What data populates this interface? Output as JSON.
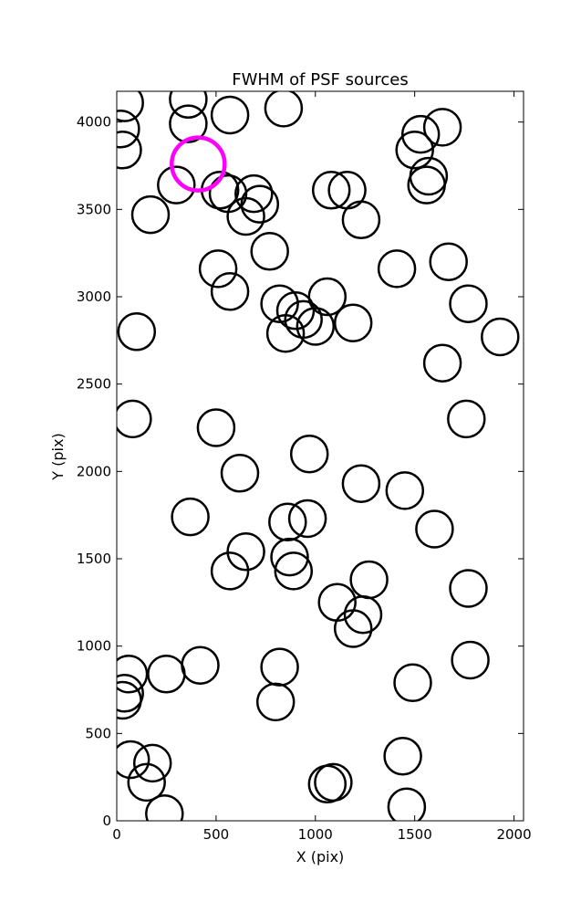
{
  "chart_data": {
    "type": "scatter",
    "title": "FWHM of PSF sources",
    "xlabel": "X (pix)",
    "ylabel": "Y (pix)",
    "xlim": [
      0,
      2048
    ],
    "ylim": [
      0,
      4176
    ],
    "xticks": [
      0,
      500,
      1000,
      1500,
      2000
    ],
    "yticks": [
      0,
      500,
      1000,
      1500,
      2000,
      2500,
      3000,
      3500,
      4000
    ],
    "grid": false,
    "marker": "open-circle",
    "source_color": "#000000",
    "highlight_color": "#ff00ff",
    "sources": [
      [
        40,
        4110
      ],
      [
        20,
        3960
      ],
      [
        30,
        3840
      ],
      [
        360,
        4130
      ],
      [
        360,
        3990
      ],
      [
        570,
        4040
      ],
      [
        840,
        4080
      ],
      [
        1530,
        3930
      ],
      [
        1640,
        3970
      ],
      [
        1500,
        3840
      ],
      [
        1570,
        3690
      ],
      [
        1560,
        3640
      ],
      [
        300,
        3640
      ],
      [
        170,
        3470
      ],
      [
        520,
        3610
      ],
      [
        560,
        3590
      ],
      [
        690,
        3590
      ],
      [
        720,
        3530
      ],
      [
        650,
        3460
      ],
      [
        1080,
        3610
      ],
      [
        1160,
        3610
      ],
      [
        1230,
        3440
      ],
      [
        770,
        3260
      ],
      [
        510,
        3160
      ],
      [
        570,
        3030
      ],
      [
        1410,
        3160
      ],
      [
        1670,
        3200
      ],
      [
        1770,
        2960
      ],
      [
        820,
        2960
      ],
      [
        900,
        2920
      ],
      [
        940,
        2870
      ],
      [
        1000,
        2830
      ],
      [
        850,
        2790
      ],
      [
        1060,
        3000
      ],
      [
        1190,
        2850
      ],
      [
        100,
        2800
      ],
      [
        1640,
        2620
      ],
      [
        1930,
        2770
      ],
      [
        80,
        2300
      ],
      [
        1760,
        2300
      ],
      [
        500,
        2250
      ],
      [
        970,
        2100
      ],
      [
        620,
        1990
      ],
      [
        1230,
        1930
      ],
      [
        1450,
        1890
      ],
      [
        370,
        1740
      ],
      [
        860,
        1710
      ],
      [
        960,
        1730
      ],
      [
        1600,
        1670
      ],
      [
        650,
        1540
      ],
      [
        570,
        1430
      ],
      [
        870,
        1510
      ],
      [
        890,
        1430
      ],
      [
        1270,
        1380
      ],
      [
        1770,
        1330
      ],
      [
        1110,
        1250
      ],
      [
        1240,
        1180
      ],
      [
        1190,
        1100
      ],
      [
        1780,
        920
      ],
      [
        1490,
        790
      ],
      [
        60,
        840
      ],
      [
        250,
        840
      ],
      [
        420,
        890
      ],
      [
        820,
        880
      ],
      [
        30,
        690
      ],
      [
        40,
        730
      ],
      [
        800,
        680
      ],
      [
        70,
        350
      ],
      [
        180,
        330
      ],
      [
        150,
        220
      ],
      [
        240,
        40
      ],
      [
        1440,
        370
      ],
      [
        1460,
        80
      ],
      [
        1060,
        210
      ],
      [
        1090,
        220
      ]
    ],
    "highlight": [
      [
        410,
        3760
      ]
    ]
  }
}
